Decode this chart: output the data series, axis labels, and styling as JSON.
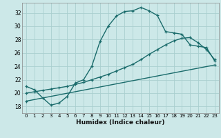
{
  "xlabel": "Humidex (Indice chaleur)",
  "bg_color": "#cce8e8",
  "line_color": "#1a6b6b",
  "grid_color": "#aacfcf",
  "xlim": [
    -0.5,
    23.5
  ],
  "ylim": [
    17.0,
    33.5
  ],
  "xticks": [
    0,
    1,
    2,
    3,
    4,
    5,
    6,
    7,
    8,
    9,
    10,
    11,
    12,
    13,
    14,
    15,
    16,
    17,
    18,
    19,
    20,
    21,
    22,
    23
  ],
  "yticks": [
    18,
    20,
    22,
    24,
    26,
    28,
    30,
    32
  ],
  "line1_x": [
    0,
    1,
    2,
    3,
    4,
    5,
    6,
    7,
    8,
    9,
    10,
    11,
    12,
    13,
    14,
    15,
    16,
    17,
    18,
    19,
    20,
    21,
    22,
    23
  ],
  "line1_y": [
    21.0,
    20.5,
    19.3,
    18.2,
    18.5,
    19.5,
    21.5,
    22.0,
    24.0,
    27.7,
    30.0,
    31.5,
    32.2,
    32.3,
    32.8,
    32.3,
    31.6,
    29.2,
    29.0,
    28.8,
    27.2,
    27.0,
    26.8,
    24.8
  ],
  "line2_x": [
    0,
    1,
    2,
    3,
    4,
    5,
    6,
    7,
    8,
    9,
    10,
    11,
    12,
    13,
    14,
    15,
    16,
    17,
    18,
    19,
    20,
    21,
    22,
    23
  ],
  "line2_y": [
    20.0,
    20.2,
    20.4,
    20.6,
    20.8,
    21.0,
    21.3,
    21.6,
    22.0,
    22.4,
    22.8,
    23.3,
    23.8,
    24.3,
    25.0,
    25.8,
    26.5,
    27.2,
    27.8,
    28.2,
    28.3,
    27.5,
    26.5,
    25.0
  ],
  "line3_x": [
    0,
    23
  ],
  "line3_y": [
    18.8,
    24.2
  ],
  "marker": "+",
  "markersize": 3,
  "markeredgewidth": 0.9,
  "linewidth": 1.0
}
